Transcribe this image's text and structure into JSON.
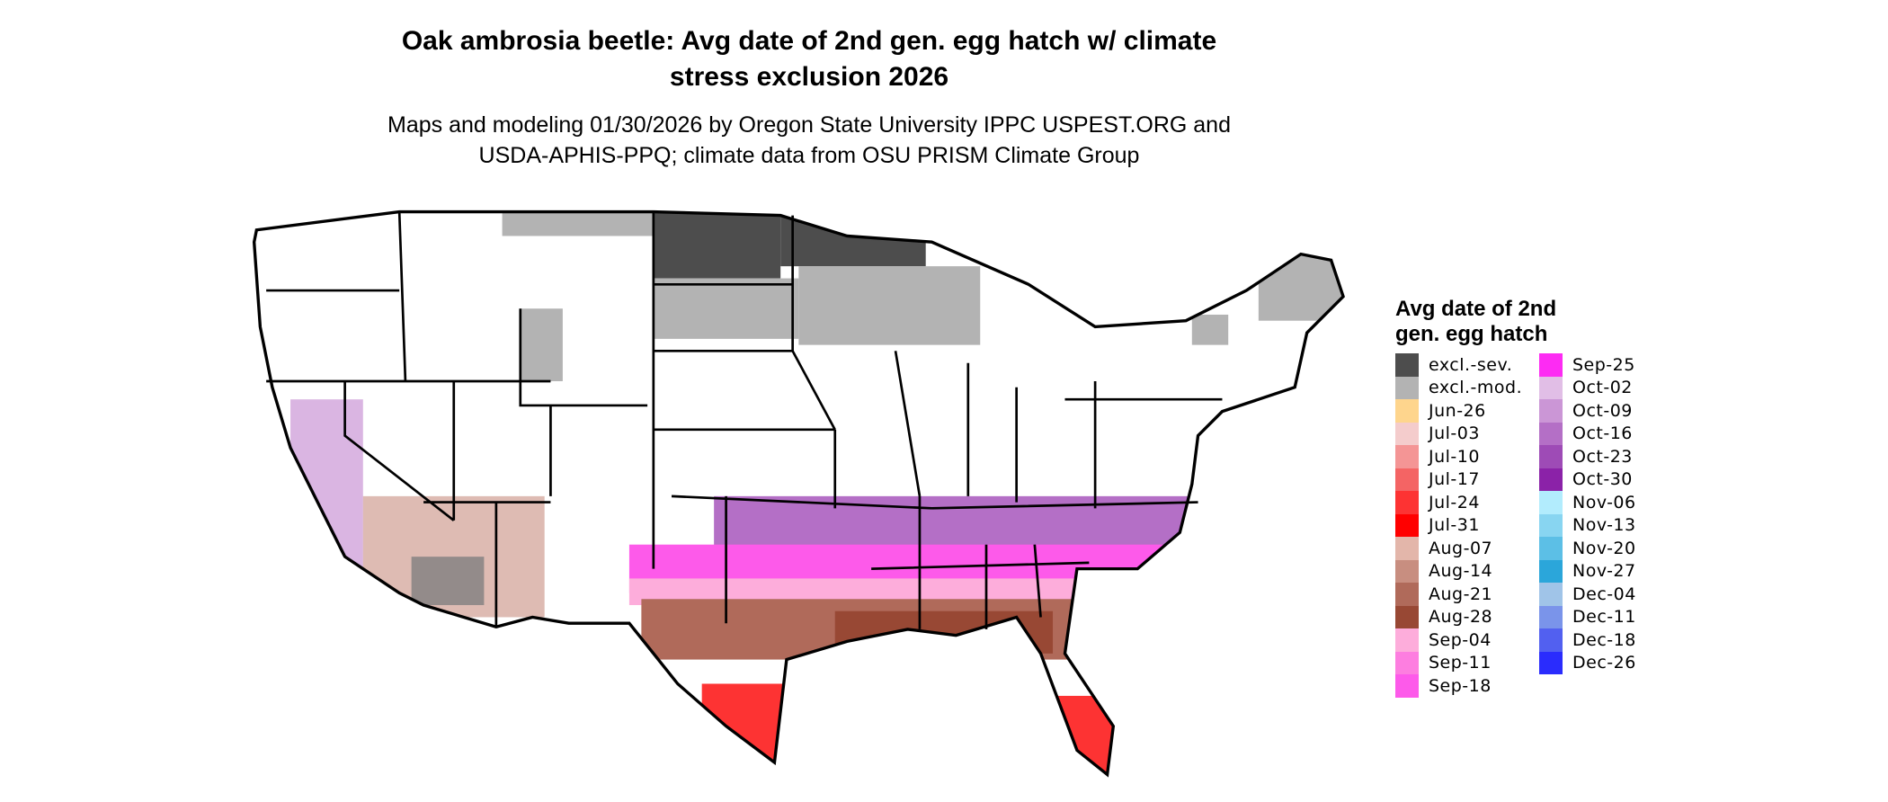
{
  "title": {
    "line1": "Oak ambrosia beetle: Avg date of 2nd gen. egg hatch w/ climate",
    "line2": "stress exclusion 2026"
  },
  "subtitle": {
    "line1": "Maps and modeling 01/30/2026 by Oregon State University IPPC USPEST.ORG and",
    "line2": "USDA-APHIS-PPQ; climate data from OSU PRISM Climate Group"
  },
  "legend": {
    "title_line1": "Avg date of 2nd",
    "title_line2": "gen. egg hatch",
    "col1": [
      {
        "label": "excl.-sev.",
        "color": "#4d4d4d"
      },
      {
        "label": "excl.-mod.",
        "color": "#b3b3b3"
      },
      {
        "label": "Jun-26",
        "color": "#fed58d"
      },
      {
        "label": "Jul-03",
        "color": "#f4cccc"
      },
      {
        "label": "Jul-10",
        "color": "#f49595"
      },
      {
        "label": "Jul-17",
        "color": "#f46464"
      },
      {
        "label": "Jul-24",
        "color": "#fd3333"
      },
      {
        "label": "Jul-31",
        "color": "#ff0000"
      },
      {
        "label": "Aug-07",
        "color": "#e3b6aa"
      },
      {
        "label": "Aug-14",
        "color": "#c88e80"
      },
      {
        "label": "Aug-21",
        "color": "#b06a5a"
      },
      {
        "label": "Aug-28",
        "color": "#984834"
      },
      {
        "label": "Sep-04",
        "color": "#fdaddb"
      },
      {
        "label": "Sep-11",
        "color": "#fd7ee0"
      },
      {
        "label": "Sep-18",
        "color": "#fd5aea"
      }
    ],
    "col2": [
      {
        "label": "Sep-25",
        "color": "#fd2bf3"
      },
      {
        "label": "Oct-02",
        "color": "#e1bee6"
      },
      {
        "label": "Oct-09",
        "color": "#cb96d6"
      },
      {
        "label": "Oct-16",
        "color": "#b46fc6"
      },
      {
        "label": "Oct-23",
        "color": "#9e4bb6"
      },
      {
        "label": "Oct-30",
        "color": "#8b22a8"
      },
      {
        "label": "Nov-06",
        "color": "#b2ecfd"
      },
      {
        "label": "Nov-13",
        "color": "#88d5f1"
      },
      {
        "label": "Nov-20",
        "color": "#5cbfe6"
      },
      {
        "label": "Nov-27",
        "color": "#2ba6da"
      },
      {
        "label": "Dec-04",
        "color": "#a0c4e8"
      },
      {
        "label": "Dec-11",
        "color": "#7a94ea"
      },
      {
        "label": "Dec-18",
        "color": "#5260f0"
      },
      {
        "label": "Dec-26",
        "color": "#2a2cfd"
      }
    ]
  }
}
